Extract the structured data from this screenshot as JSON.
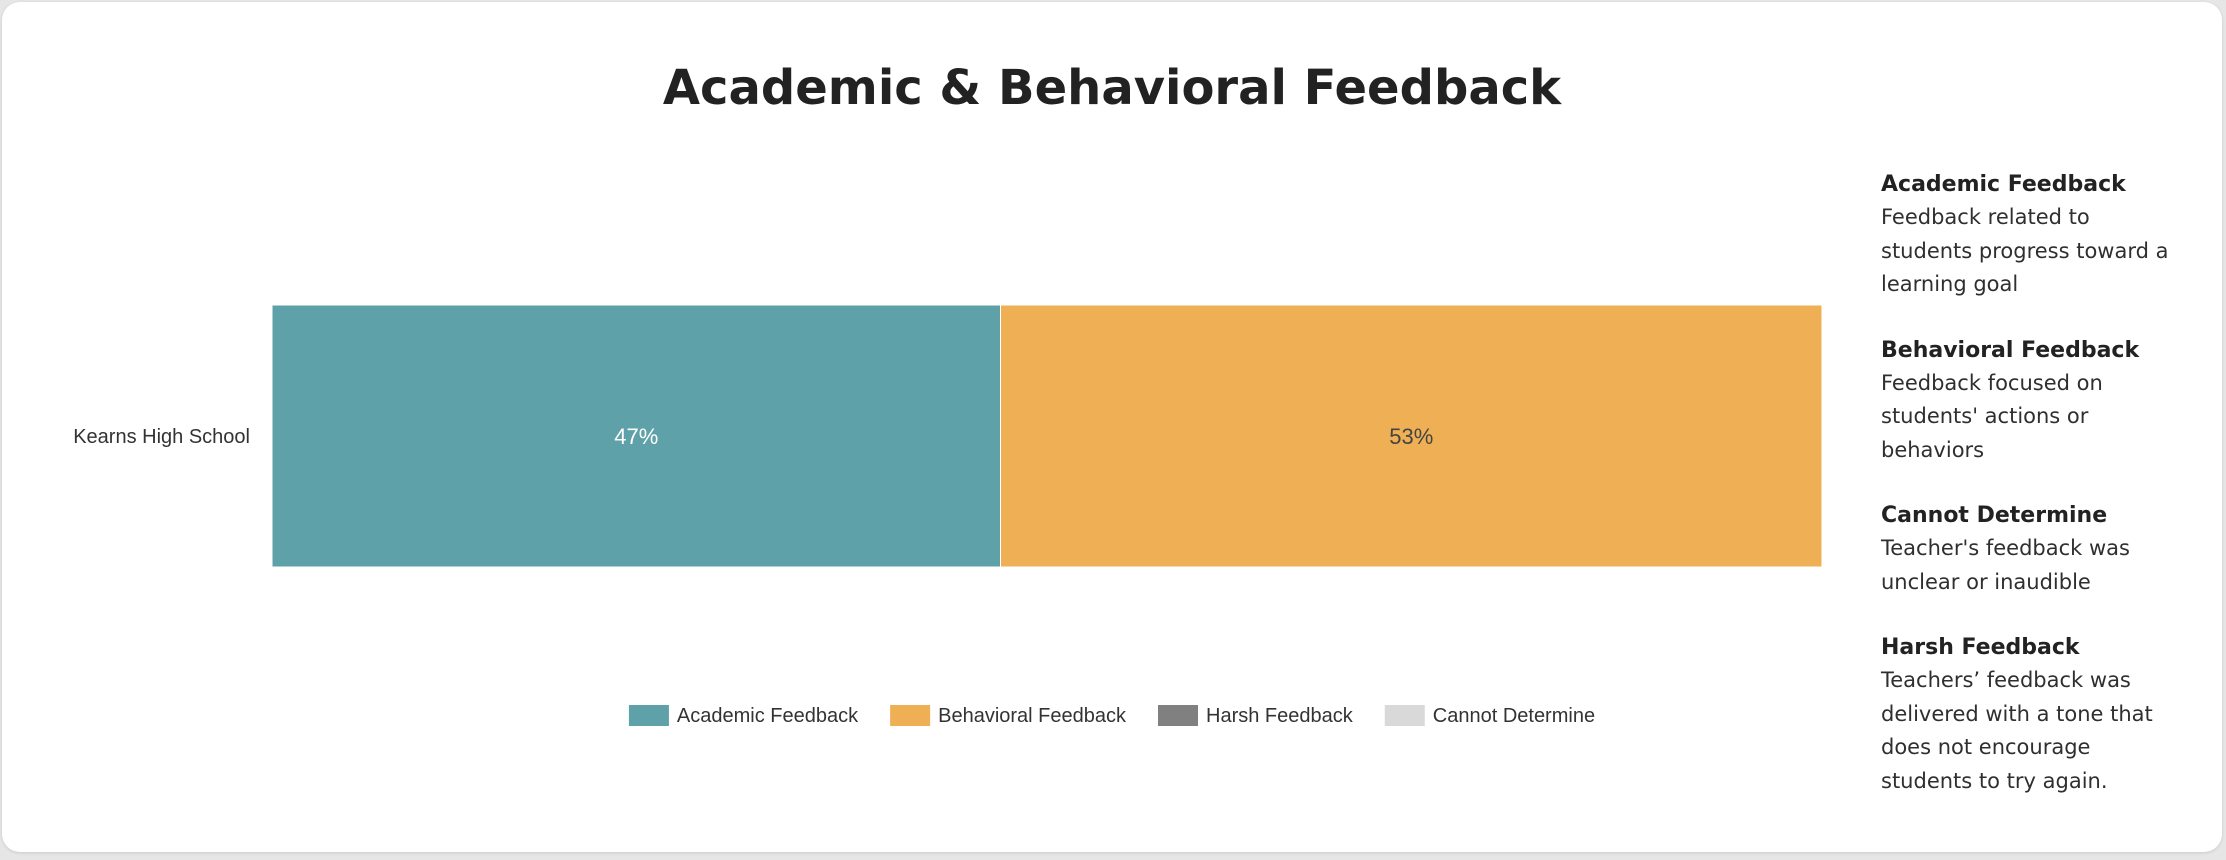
{
  "chart_data": {
    "type": "bar",
    "orientation": "horizontal",
    "stacked": true,
    "title": "Academic & Behavioral Feedback",
    "categories": [
      "Kearns High School"
    ],
    "series": [
      {
        "name": "Academic Feedback",
        "values": [
          47
        ],
        "label": "47%",
        "color": "#5ea1a8",
        "label_color": "#ffffff"
      },
      {
        "name": "Behavioral Feedback",
        "values": [
          53
        ],
        "label": "53%",
        "color": "#efb055",
        "label_color": "#444444"
      },
      {
        "name": "Harsh Feedback",
        "values": [
          0
        ],
        "label": "",
        "color": "#808080",
        "label_color": "#ffffff"
      },
      {
        "name": "Cannot Determine",
        "values": [
          0
        ],
        "label": "",
        "color": "#d9d9d9",
        "label_color": "#444444"
      }
    ],
    "xlim": [
      0,
      100
    ],
    "grid": false,
    "legend_position": "bottom"
  },
  "glossary": [
    {
      "term": "Academic Feedback",
      "desc": [
        "Feedback related to",
        "students progress toward a",
        "learning goal"
      ]
    },
    {
      "term": "Behavioral Feedback",
      "desc": [
        "Feedback focused on",
        "students' actions or",
        "behaviors"
      ]
    },
    {
      "term": "Cannot Determine",
      "desc": [
        "Teacher's feedback was",
        "unclear or inaudible"
      ]
    },
    {
      "term": "Harsh Feedback",
      "desc": [
        "Teachers’ feedback was",
        "delivered with a tone that",
        "does not encourage",
        "students to try again."
      ]
    }
  ]
}
